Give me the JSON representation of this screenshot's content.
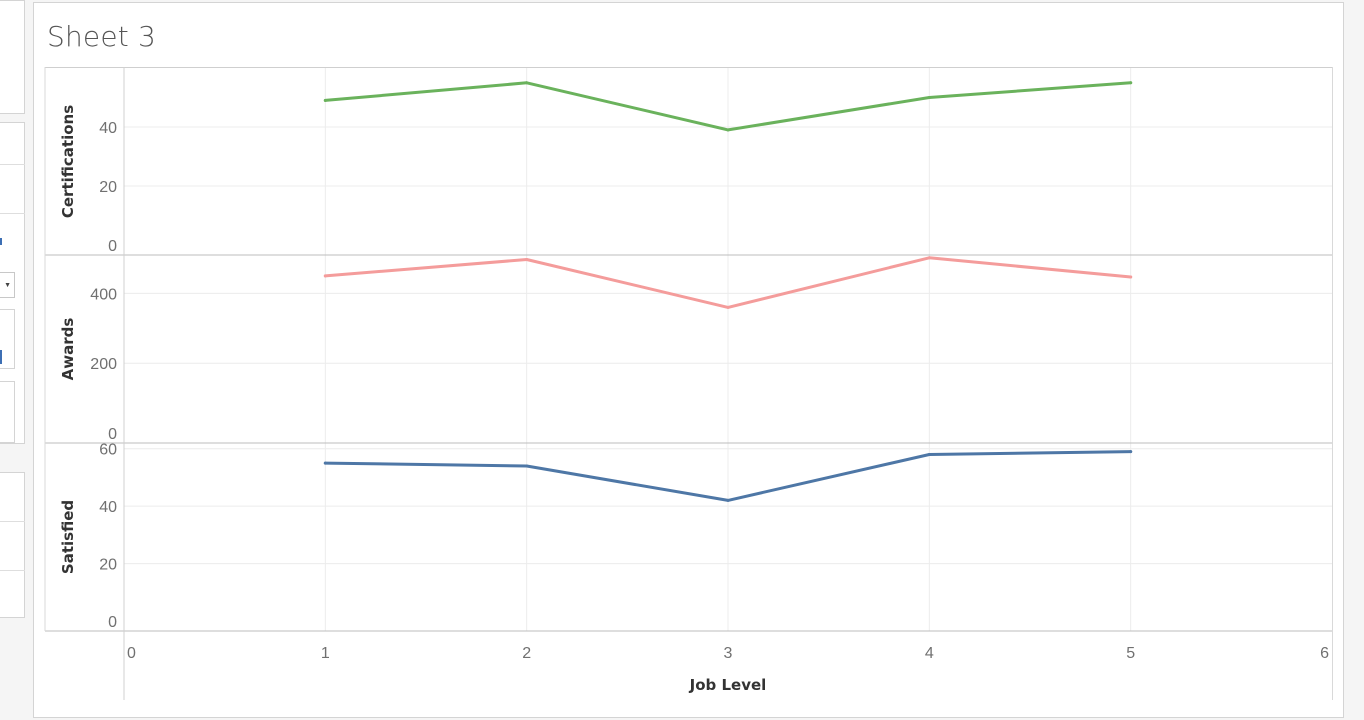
{
  "sheet": {
    "title": "Sheet 3"
  },
  "chart_data": {
    "type": "line",
    "x_axis": {
      "label": "Job Level",
      "range": [
        0,
        6
      ],
      "ticks": [
        "0",
        "1",
        "2",
        "3",
        "4",
        "5",
        "6"
      ]
    },
    "x": [
      1,
      2,
      3,
      4,
      5
    ],
    "panes": [
      {
        "name": "Certifications",
        "ylabel": "Certifications",
        "ylim": [
          0,
          60
        ],
        "ticks": [
          0,
          20,
          40
        ],
        "color": "#6ab25c",
        "values": [
          49,
          55,
          39,
          50,
          55
        ]
      },
      {
        "name": "Awards",
        "ylabel": "Awards",
        "ylim": [
          0,
          510
        ],
        "ticks": [
          0,
          200,
          400
        ],
        "color": "#f49c9b",
        "values": [
          450,
          497,
          360,
          502,
          447
        ]
      },
      {
        "name": "Satisfied",
        "ylabel": "Satisfied",
        "ylim": [
          0,
          62
        ],
        "ticks": [
          0,
          20,
          40,
          60
        ],
        "color": "#4e77a6",
        "values": [
          55,
          54,
          42,
          58,
          59
        ]
      }
    ],
    "grid": true,
    "legend": "none"
  }
}
